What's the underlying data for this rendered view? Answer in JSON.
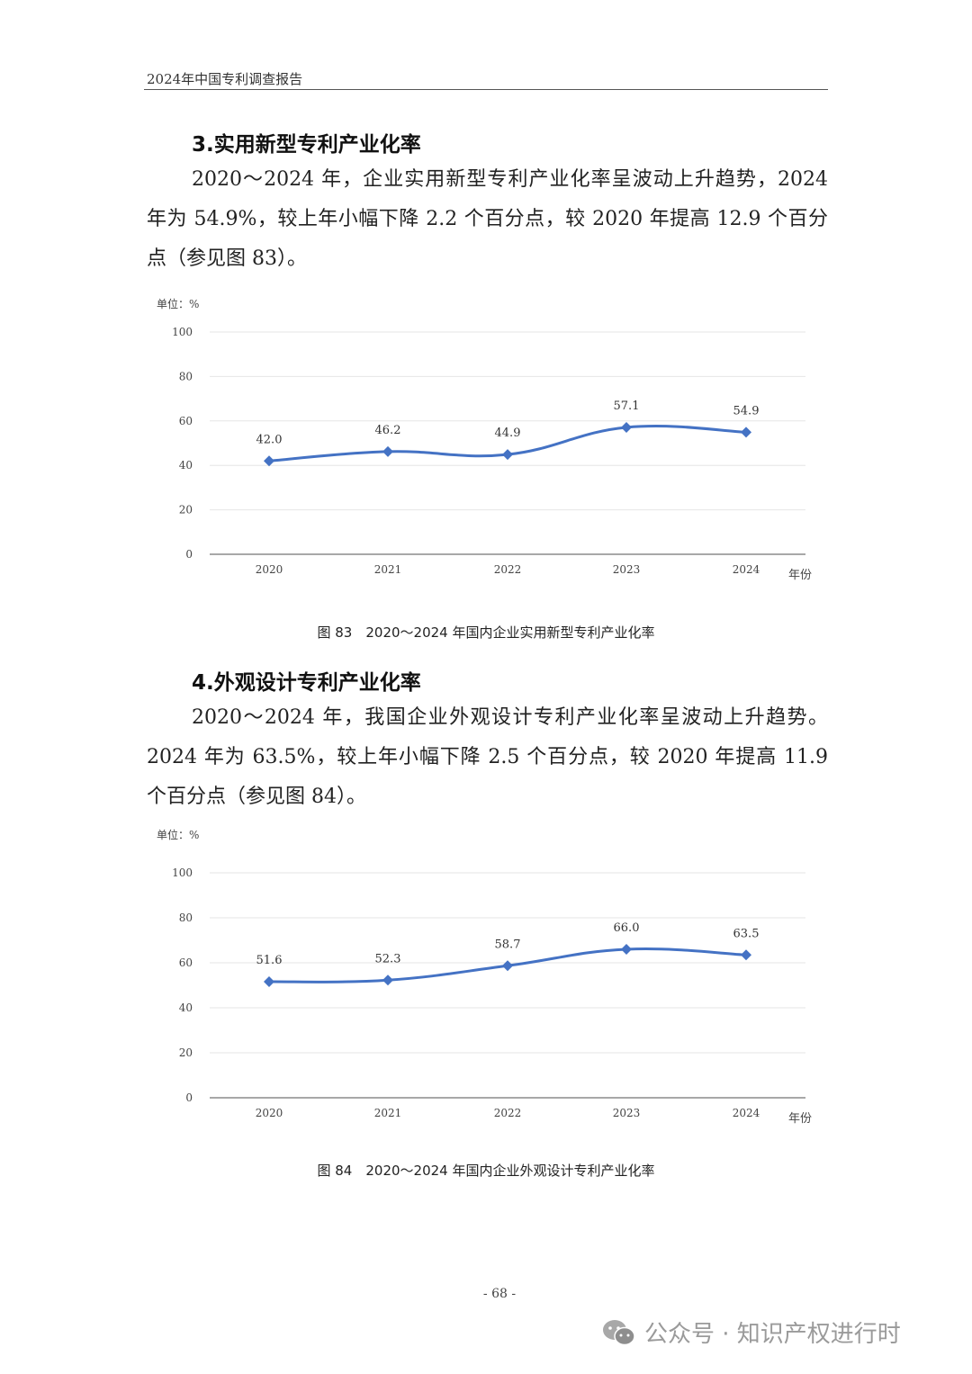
{
  "header": {
    "title": "2024年中国专利调查报告"
  },
  "section3": {
    "heading": "3.实用新型专利产业化率",
    "paragraph": "2020～2024 年，企业实用新型专利产业化率呈波动上升趋势，2024 年为 54.9%，较上年小幅下降 2.2 个百分点，较 2020 年提高 12.9 个百分点（参见图 83）。"
  },
  "figure83": {
    "caption": "图 83　2020～2024 年国内企业实用新型专利产业化率",
    "unit": "单位：%",
    "xlabel": "年份"
  },
  "section4": {
    "heading": "4.外观设计专利产业化率",
    "paragraph": "2020～2024 年，我国企业外观设计专利产业化率呈波动上升趋势。2024 年为 63.5%，较上年小幅下降 2.5 个百分点，较 2020 年提高 11.9 个百分点（参见图 84）。"
  },
  "figure84": {
    "caption": "图 84　2020～2024 年国内企业外观设计专利产业化率",
    "unit": "单位：%",
    "xlabel": "年份"
  },
  "footer": {
    "page_number": "- 68 -",
    "watermark": "公众号 · 知识产权进行时"
  },
  "colors": {
    "series": "#4472C4",
    "grid": "#e6e6e6",
    "axis": "#8c8c8c"
  },
  "chart_data": [
    {
      "type": "line",
      "title": "图 83 2020～2024 年国内企业实用新型专利产业化率",
      "categories": [
        "2020",
        "2021",
        "2022",
        "2023",
        "2024"
      ],
      "values": [
        42.0,
        46.2,
        44.9,
        57.1,
        54.9
      ],
      "xlabel": "年份",
      "ylabel": "单位：%",
      "ylim": [
        0,
        100
      ],
      "yticks": [
        0,
        20,
        40,
        60,
        80,
        100
      ],
      "grid": true,
      "legend": null,
      "data_labels": true,
      "smooth": true,
      "marker": "diamond"
    },
    {
      "type": "line",
      "title": "图 84 2020～2024 年国内企业外观设计专利产业化率",
      "categories": [
        "2020",
        "2021",
        "2022",
        "2023",
        "2024"
      ],
      "values": [
        51.6,
        52.3,
        58.7,
        66.0,
        63.5
      ],
      "xlabel": "年份",
      "ylabel": "单位：%",
      "ylim": [
        0,
        100
      ],
      "yticks": [
        0,
        20,
        40,
        60,
        80,
        100
      ],
      "grid": true,
      "legend": null,
      "data_labels": true,
      "smooth": true,
      "marker": "diamond"
    }
  ]
}
